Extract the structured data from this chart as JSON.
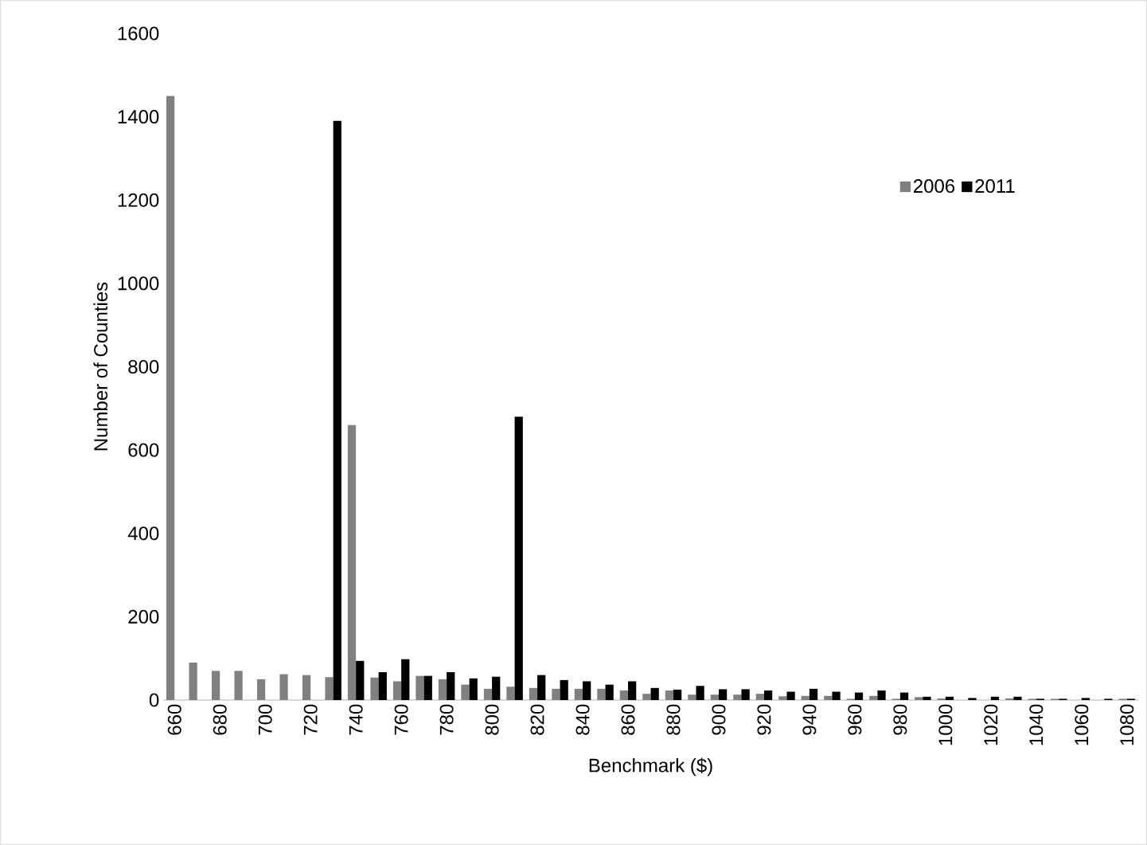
{
  "chart_data": {
    "type": "bar",
    "xlabel": "Benchmark ($)",
    "ylabel": "Number of Counties",
    "categories": [
      "660",
      null,
      "680",
      null,
      "700",
      null,
      "720",
      null,
      "740",
      null,
      "760",
      null,
      "780",
      null,
      "800",
      null,
      "820",
      null,
      "840",
      null,
      "860",
      null,
      "880",
      null,
      "900",
      null,
      "920",
      null,
      "940",
      null,
      "960",
      null,
      "980",
      null,
      "1000",
      null,
      "1020",
      null,
      "1040",
      null,
      "1060",
      null,
      "1080"
    ],
    "series": [
      {
        "name": "2006",
        "color": "#808080",
        "values": [
          1450,
          90,
          70,
          70,
          50,
          62,
          60,
          55,
          660,
          54,
          45,
          58,
          50,
          37,
          27,
          32,
          29,
          27,
          27,
          27,
          23,
          15,
          23,
          13,
          13,
          13,
          15,
          9,
          10,
          10,
          3,
          10,
          3,
          7,
          4,
          0,
          0,
          4,
          3,
          3,
          0,
          0,
          3
        ]
      },
      {
        "name": "2011",
        "color": "#000000",
        "values": [
          0,
          0,
          0,
          0,
          0,
          0,
          0,
          1390,
          94,
          67,
          98,
          58,
          67,
          52,
          56,
          680,
          60,
          48,
          45,
          37,
          45,
          29,
          25,
          34,
          26,
          26,
          23,
          20,
          27,
          20,
          18,
          23,
          18,
          8,
          8,
          5,
          8,
          8,
          3,
          3,
          5,
          3,
          3
        ]
      }
    ],
    "ylim": [
      0,
      1600
    ],
    "yticks": [
      0,
      200,
      400,
      600,
      800,
      1000,
      1200,
      1400,
      1600
    ],
    "legend": "top right"
  }
}
